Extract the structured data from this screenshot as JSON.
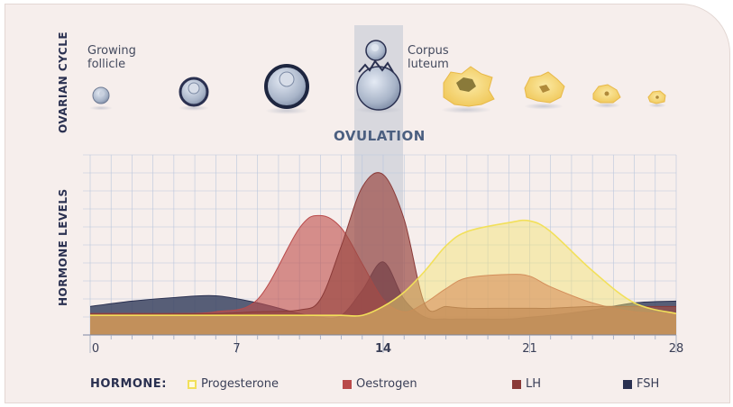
{
  "labels": {
    "ovarian_cycle": "OVARIAN CYCLE",
    "hormone_levels": "HORMONE LEVELS",
    "growing_follicle_1": "Growing",
    "growing_follicle_2": "follicle",
    "corpus_luteum_1": "Corpus",
    "corpus_luteum_2": "luteum",
    "ovulation": "OVULATION"
  },
  "legend": {
    "title": "HORMONE:",
    "items": [
      {
        "label": "Progesterone",
        "color": "#f2e05a"
      },
      {
        "label": "Oestrogen",
        "color": "#b94a4a"
      },
      {
        "label": "LH",
        "color": "#8a3a38"
      },
      {
        "label": "FSH",
        "color": "#2a3050"
      }
    ]
  },
  "chart_data": {
    "type": "area",
    "x_ticks": [
      "0",
      "7",
      "14",
      "21",
      "28"
    ],
    "x": [
      0,
      2,
      4,
      6,
      8,
      10,
      11,
      12,
      13,
      14,
      15,
      16,
      17,
      18,
      20,
      21,
      22,
      24,
      26,
      28
    ],
    "xlim": [
      0,
      28
    ],
    "series": [
      {
        "name": "FSH",
        "color": "#2a3050",
        "values": [
          1.6,
          1.9,
          2.1,
          2.2,
          1.8,
          1.2,
          1.0,
          1.1,
          2.5,
          4.1,
          2.0,
          1.0,
          0.9,
          0.9,
          0.9,
          1.0,
          1.1,
          1.4,
          1.8,
          1.9
        ]
      },
      {
        "name": "Oestrogen",
        "color": "#b94a4a",
        "values": [
          1.2,
          1.2,
          1.2,
          1.3,
          2.0,
          6.0,
          6.7,
          6.0,
          4.0,
          2.0,
          1.3,
          1.8,
          2.6,
          3.2,
          3.4,
          3.3,
          2.7,
          1.8,
          1.3,
          1.2
        ]
      },
      {
        "name": "LH",
        "color": "#8a3a38",
        "values": [
          1.2,
          1.2,
          1.2,
          1.2,
          1.3,
          1.4,
          2.0,
          5.0,
          8.3,
          9.0,
          6.5,
          1.7,
          1.6,
          1.5,
          1.5,
          1.5,
          1.5,
          1.6,
          1.6,
          1.6
        ]
      },
      {
        "name": "Progesterone",
        "color": "#f2e05a",
        "values": [
          1.1,
          1.1,
          1.1,
          1.1,
          1.1,
          1.1,
          1.1,
          1.1,
          1.1,
          1.6,
          2.4,
          3.6,
          5.0,
          5.8,
          6.3,
          6.4,
          5.8,
          3.6,
          1.8,
          1.2
        ]
      }
    ]
  }
}
